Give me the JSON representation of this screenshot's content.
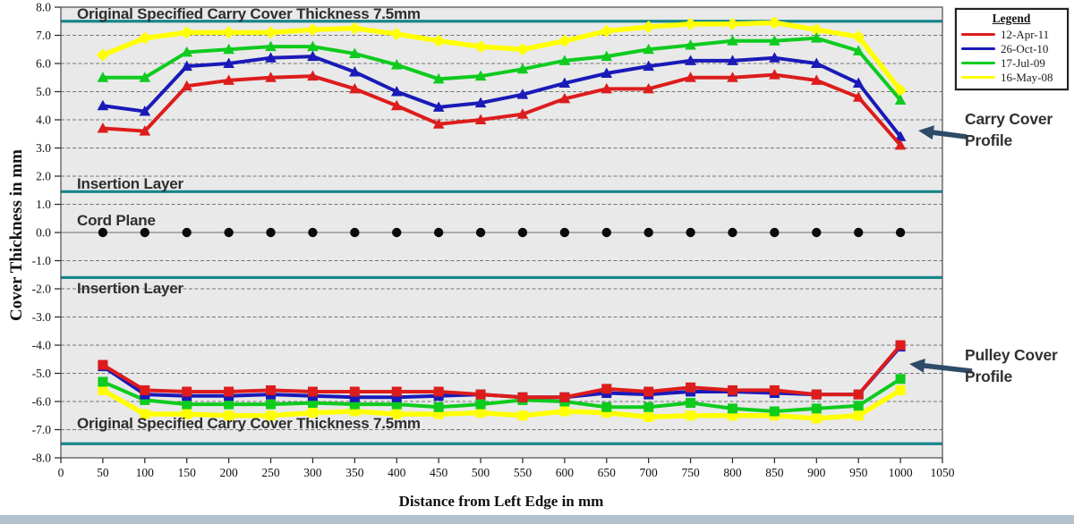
{
  "figure": {
    "plot_bg": "#e9e9e9",
    "grid_color": "#737373",
    "reference_line_color": "#17858a",
    "arrow_color": "#2e4b68",
    "bottom_strip_color": "#b4c2cf"
  },
  "annotations": {
    "top_spec": "Original Specified Carry Cover Thickness 7.5mm",
    "insertion_upper": "Insertion Layer",
    "cord_plane": "Cord Plane",
    "insertion_lower": "Insertion Layer",
    "bottom_spec": "Original Specified Carry Cover Thickness 7.5mm",
    "carry_profile": "Carry Cover Profile",
    "pulley_profile": "Pulley Cover Profile"
  },
  "legend": {
    "title": "Legend",
    "items": [
      {
        "label": "12-Apr-11",
        "color": "#dd1c1c"
      },
      {
        "label": "26-Oct-10",
        "color": "#1a1ab8"
      },
      {
        "label": "17-Jul-09",
        "color": "#0ecb1e"
      },
      {
        "label": "16-May-08",
        "color": "#ffff00"
      }
    ]
  },
  "chart_data": {
    "type": "line",
    "title": "",
    "xlabel": "Distance from Left Edge in mm",
    "ylabel": "Cover Thickness in mm",
    "xlim": [
      0,
      1050
    ],
    "ylim": [
      -8.0,
      8.0
    ],
    "grid": "horizontal dashed every 1.0",
    "legend_position": "top-right",
    "x_tick_labels": [
      "0",
      "50",
      "100",
      "150",
      "200",
      "250",
      "300",
      "350",
      "400",
      "450",
      "500",
      "550",
      "600",
      "650",
      "700",
      "750",
      "800",
      "850",
      "900",
      "950",
      "1000",
      "1050"
    ],
    "y_tick_labels": [
      "8.0",
      "7.0",
      "6.0",
      "5.0",
      "4.0",
      "3.0",
      "2.0",
      "1.0",
      "0.0",
      "-1.0",
      "-2.0",
      "-3.0",
      "-4.0",
      "-5.0",
      "-6.0",
      "-7.0",
      "-8.0"
    ],
    "x": [
      50,
      100,
      150,
      200,
      250,
      300,
      350,
      400,
      450,
      500,
      550,
      600,
      650,
      700,
      750,
      800,
      850,
      900,
      950,
      1000
    ],
    "carry_series": [
      {
        "name": "16-May-08",
        "color": "#ffff00",
        "marker": "diamond",
        "values": [
          6.3,
          6.9,
          7.1,
          7.1,
          7.1,
          7.2,
          7.25,
          7.05,
          6.8,
          6.6,
          6.5,
          6.8,
          7.15,
          7.3,
          7.4,
          7.4,
          7.45,
          7.2,
          6.95,
          5.05
        ]
      },
      {
        "name": "17-Jul-09",
        "color": "#0ecb1e",
        "marker": "triangle",
        "values": [
          5.5,
          5.5,
          6.4,
          6.5,
          6.6,
          6.6,
          6.35,
          5.95,
          5.45,
          5.55,
          5.8,
          6.1,
          6.25,
          6.5,
          6.65,
          6.8,
          6.8,
          6.9,
          6.45,
          4.7
        ]
      },
      {
        "name": "26-Oct-10",
        "color": "#1a1ab8",
        "marker": "triangle",
        "values": [
          4.5,
          4.3,
          5.9,
          6.0,
          6.2,
          6.25,
          5.7,
          5.0,
          4.45,
          4.6,
          4.9,
          5.3,
          5.65,
          5.9,
          6.1,
          6.1,
          6.2,
          6.0,
          5.3,
          3.4
        ]
      },
      {
        "name": "12-Apr-11",
        "color": "#dd1c1c",
        "marker": "triangle",
        "values": [
          3.7,
          3.6,
          5.2,
          5.4,
          5.5,
          5.55,
          5.1,
          4.5,
          3.85,
          4.0,
          4.2,
          4.75,
          5.1,
          5.1,
          5.5,
          5.5,
          5.6,
          5.4,
          4.8,
          3.1
        ]
      }
    ],
    "cord_plane": {
      "label": "Cord Plane",
      "values": [
        0,
        0,
        0,
        0,
        0,
        0,
        0,
        0,
        0,
        0,
        0,
        0,
        0,
        0,
        0,
        0,
        0,
        0,
        0,
        0
      ]
    },
    "pulley_series": [
      {
        "name": "16-May-08",
        "color": "#ffff00",
        "marker": "square",
        "values": [
          -5.6,
          -6.45,
          -6.45,
          -6.5,
          -6.5,
          -6.4,
          -6.35,
          -6.45,
          -6.45,
          -6.4,
          -6.5,
          -6.35,
          -6.4,
          -6.55,
          -6.5,
          -6.5,
          -6.5,
          -6.6,
          -6.5,
          -5.6
        ]
      },
      {
        "name": "17-Jul-09",
        "color": "#0ecb1e",
        "marker": "square",
        "values": [
          -5.3,
          -5.95,
          -6.1,
          -6.1,
          -6.1,
          -6.05,
          -6.1,
          -6.1,
          -6.2,
          -6.1,
          -5.95,
          -6.0,
          -6.2,
          -6.2,
          -6.05,
          -6.25,
          -6.35,
          -6.25,
          -6.15,
          -5.2
        ]
      },
      {
        "name": "26-Oct-10",
        "color": "#1a1ab8",
        "marker": "square",
        "values": [
          -4.75,
          -5.75,
          -5.8,
          -5.8,
          -5.75,
          -5.8,
          -5.85,
          -5.85,
          -5.8,
          -5.75,
          -5.85,
          -5.85,
          -5.7,
          -5.75,
          -5.65,
          -5.65,
          -5.7,
          -5.75,
          -5.75,
          -4.05
        ]
      },
      {
        "name": "12-Apr-11",
        "color": "#dd1c1c",
        "marker": "square",
        "values": [
          -4.7,
          -5.6,
          -5.65,
          -5.65,
          -5.6,
          -5.65,
          -5.65,
          -5.65,
          -5.65,
          -5.75,
          -5.85,
          -5.85,
          -5.55,
          -5.65,
          -5.5,
          -5.6,
          -5.6,
          -5.75,
          -5.75,
          -4.0
        ]
      }
    ],
    "reference_lines": [
      {
        "label": "Original Specified Carry Cover Thickness 7.5mm",
        "value": 7.5
      },
      {
        "label": "Insertion Layer",
        "value": 1.45
      },
      {
        "label": "Insertion Layer",
        "value": -1.6
      },
      {
        "label": "Original Specified Carry Cover Thickness 7.5mm",
        "value": -7.5
      }
    ]
  }
}
